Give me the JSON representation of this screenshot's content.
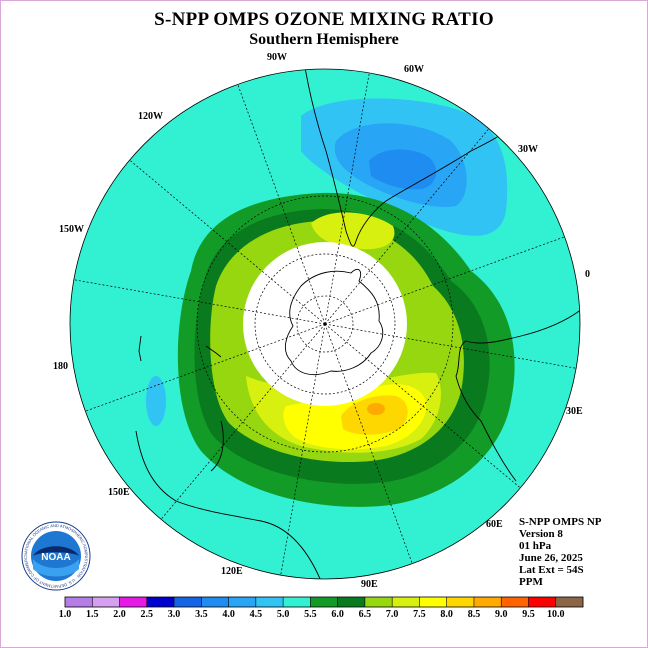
{
  "title": "S-NPP OMPS OZONE MIXING RATIO",
  "subtitle": "Southern Hemisphere",
  "longitude_labels": {
    "w90": "90W",
    "w60": "60W",
    "w30": "30W",
    "zero": "0",
    "e30": "30E",
    "e60": "60E",
    "e90": "90E",
    "e120": "120E",
    "e150": "150E",
    "d180": "180",
    "w150": "150W",
    "w120": "120W"
  },
  "info": {
    "instrument": "S-NPP OMPS NP",
    "version": "Version 8",
    "level": "01 hPa",
    "date": "June 26, 2025",
    "lat_ext": "Lat Ext = 54S",
    "units": "PPM"
  },
  "logo": {
    "text": "NOAA",
    "ring_text": "NATIONAL OCEANIC AND ATMOSPHERIC ADMINISTRATION · U.S. DEPARTMENT OF COMMERCE"
  },
  "colorbar": {
    "labels": [
      "1.0",
      "1.5",
      "2.0",
      "2.5",
      "3.0",
      "3.5",
      "4.0",
      "4.5",
      "5.0",
      "5.5",
      "6.0",
      "6.5",
      "7.0",
      "7.5",
      "8.0",
      "8.5",
      "9.0",
      "9.5",
      "10.0"
    ],
    "colors": [
      "#b47ee6",
      "#d6a0f0",
      "#e619e6",
      "#0000cd",
      "#1464e6",
      "#1e8cf0",
      "#28a5f5",
      "#32c3f5",
      "#32f0d2",
      "#139b28",
      "#0a7a1e",
      "#96d70f",
      "#d7f00f",
      "#ffff00",
      "#ffd700",
      "#ffaa00",
      "#ff6400",
      "#ff0000",
      "#8c6446"
    ]
  },
  "map_colors": {
    "background": "#32f0d2",
    "low_outer": "#32c3f5",
    "low_mid": "#28a5f5",
    "low_core": "#1e8cf0",
    "ring_dark": "#139b28",
    "ring_darker": "#0a7a1e",
    "band_lime": "#96d70f",
    "band_yellowgreen": "#d7f00f",
    "band_yellow": "#ffff00",
    "band_gold": "#ffd700",
    "peak": "#ffaa00",
    "polar_night": "#ffffff"
  }
}
